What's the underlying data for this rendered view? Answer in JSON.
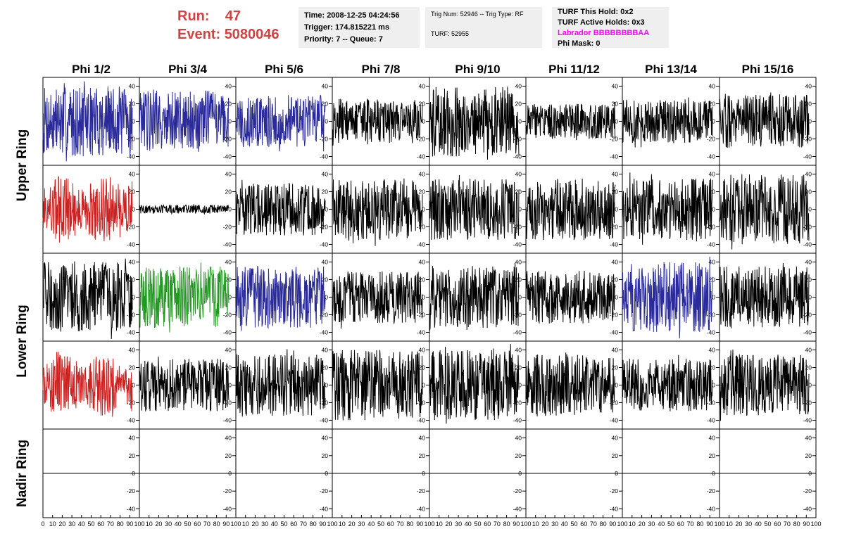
{
  "header": {
    "run_label": "Run:",
    "run_value": "47",
    "event_label": "Event:",
    "event_value": "5080046",
    "time": "Time: 2008-12-25 04:24:56",
    "trigger": "Trigger: 174.815221 ms",
    "priority": "Priority: 7 -- Queue: 7",
    "trig_num": "Trig Num: 52946 -- Trig Type: RF",
    "turf": "TURF: 52955",
    "turf_hold": "TURF This Hold: 0x2",
    "turf_active": "TURF Active Holds: 0x3",
    "labrador": "Labrador BBBBBBBBAA",
    "phi_mask": "Phi Mask: 0"
  },
  "colors": {
    "run_text": "#cc4444",
    "labrador_text": "#ff00ff",
    "blue": "#2a2a9a",
    "red": "#cc2222",
    "green": "#229922",
    "black": "#000000"
  },
  "chart_data": {
    "type": "line",
    "column_labels": [
      "Phi 1/2",
      "Phi 3/4",
      "Phi 5/6",
      "Phi 7/8",
      "Phi 9/10",
      "Phi 11/12",
      "Phi 13/14",
      "Phi 15/16"
    ],
    "row_labels": [
      "Upper Ring",
      "Lower Ring",
      "Nadir Ring"
    ],
    "xlim": [
      0,
      100
    ],
    "ylim": [
      -50,
      50
    ],
    "x_ticks": [
      0,
      10,
      20,
      30,
      40,
      50,
      60,
      70,
      80,
      90,
      100
    ],
    "y_ticks": [
      -40,
      -20,
      0,
      20,
      40
    ],
    "series_colors_by_panel": [
      [
        "blue",
        "blue",
        "blue",
        "black",
        "black",
        "black",
        "black",
        "black"
      ],
      [
        "red",
        "black",
        "black",
        "black",
        "black",
        "black",
        "black",
        "black"
      ],
      [
        "black",
        "green",
        "blue",
        "black",
        "black",
        "black",
        "blue",
        "black"
      ],
      [
        "red",
        "black",
        "black",
        "black",
        "black",
        "black",
        "black",
        "black"
      ],
      [
        "black",
        "black",
        "black",
        "black",
        "black",
        "black",
        "black",
        "black"
      ]
    ],
    "approx_amplitude_by_panel": [
      [
        40,
        35,
        30,
        25,
        40,
        20,
        25,
        30
      ],
      [
        40,
        5,
        30,
        35,
        35,
        35,
        35,
        40
      ],
      [
        40,
        35,
        35,
        30,
        35,
        30,
        40,
        35
      ],
      [
        35,
        30,
        35,
        40,
        40,
        35,
        30,
        35
      ],
      [
        0,
        0,
        0,
        0,
        0,
        0,
        0,
        0
      ]
    ],
    "nadir_values": 0
  }
}
